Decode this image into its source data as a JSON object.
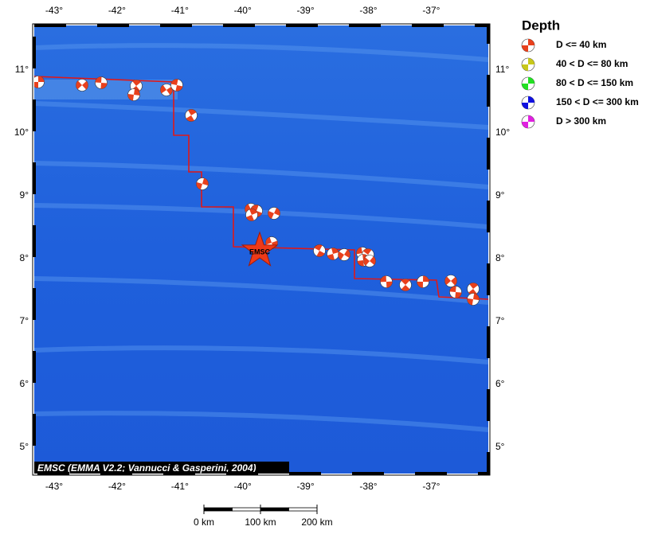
{
  "map": {
    "x_labels": [
      "-43°",
      "-42°",
      "-41°",
      "-40°",
      "-39°",
      "-38°",
      "-37°"
    ],
    "y_labels": [
      "11°",
      "10°",
      "9°",
      "8°",
      "7°",
      "6°",
      "5°"
    ],
    "attribution": "EMSC (EMMA V2.2; Vannucci & Gasperini, 2004)",
    "epicenter_label": "EMSC"
  },
  "legend": {
    "title": "Depth",
    "items": [
      {
        "label": "D <= 40 km",
        "color": "#e8401c"
      },
      {
        "label": "40 < D <= 80 km",
        "color": "#c8c81a"
      },
      {
        "label": "80 < D <= 150 km",
        "color": "#22e022"
      },
      {
        "label": "150 < D <= 300 km",
        "color": "#1010e0"
      },
      {
        "label": "D > 300 km",
        "color": "#e020e0"
      }
    ]
  },
  "scale_bar": {
    "labels": [
      "0 km",
      "100 km",
      "200 km"
    ]
  }
}
